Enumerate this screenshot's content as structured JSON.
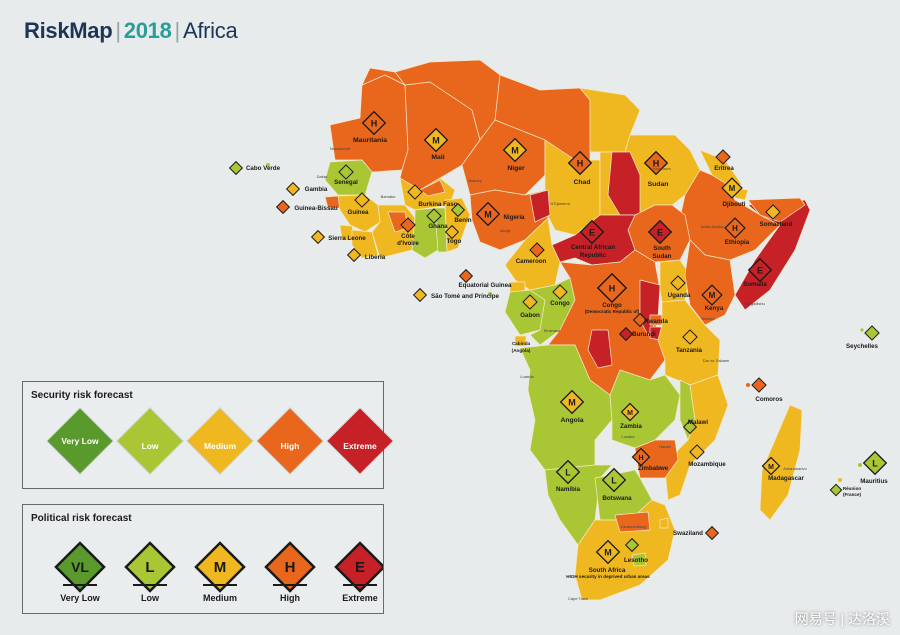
{
  "header": {
    "brand": "RiskMap",
    "year": "2018",
    "region": "Africa"
  },
  "colors": {
    "very_low": "#5a9a2d",
    "low": "#a9c634",
    "medium": "#f0b820",
    "high": "#e8671d",
    "extreme": "#c52127",
    "ocean": "#e7ebeb"
  },
  "security_legend": {
    "title": "Security risk forecast",
    "items": [
      "Very Low",
      "Low",
      "Medium",
      "High",
      "Extreme"
    ]
  },
  "political_legend": {
    "title": "Political risk forecast",
    "items": [
      {
        "letter": "VL",
        "label": "Very Low"
      },
      {
        "letter": "L",
        "label": "Low"
      },
      {
        "letter": "M",
        "label": "Medium"
      },
      {
        "letter": "H",
        "label": "High"
      },
      {
        "letter": "E",
        "label": "Extreme"
      }
    ]
  },
  "countries": {
    "mauritania": "Mauritania",
    "mali": "Mali",
    "niger": "Niger",
    "chad": "Chad",
    "sudan": "Sudan",
    "eritrea": "Eritrea",
    "djibouti": "Djibouti",
    "ethiopia": "Ethiopia",
    "somaliland": "Somaliland",
    "somalia": "Somalia",
    "south_sudan_1": "South",
    "south_sudan_2": "Sudan",
    "car_1": "Central African",
    "car_2": "Republic",
    "nigeria": "Nigeria",
    "cameroon": "Cameroon",
    "cabo_verde": "Cabo Verde",
    "senegal": "Senegal",
    "gambia": "Gambia",
    "guinea_bissau": "Guinea-Bissau",
    "guinea": "Guinea",
    "burkina_faso": "Burkina Faso",
    "sierra_leone": "Sierra Leone",
    "liberia": "Liberia",
    "cote_divoire_1": "Côte",
    "cote_divoire_2": "d'Ivoire",
    "ghana": "Ghana",
    "togo": "Togo",
    "benin": "Benin",
    "equatorial_guinea": "Equatorial Guinea",
    "sao_tome": "São Tomé and Príncipe",
    "gabon": "Gabon",
    "congo": "Congo",
    "drc_1": "Congo",
    "drc_2": "(Democratic Republic of)",
    "cabinda_1": "Cabinda",
    "cabinda_2": "(Angola)",
    "uganda": "Uganda",
    "kenya": "Kenya",
    "rwanda": "Rwanda",
    "burundi": "Burundi",
    "tanzania": "Tanzania",
    "seychelles": "Seychelles",
    "comoros": "Comoros",
    "angola": "Angola",
    "zambia": "Zambia",
    "malawi": "Malawi",
    "mozambique": "Mozambique",
    "zimbabwe": "Zimbabwe",
    "madagascar": "Madagascar",
    "mauritius": "Mauritius",
    "reunion_1": "Réunion",
    "reunion_2": "(France)",
    "namibia": "Namibia",
    "botswana": "Botswana",
    "swaziland": "Swaziland",
    "lesotho": "Lesotho",
    "south_africa": "South Africa",
    "south_africa_note": "HIGH security in deprived urban areas"
  },
  "cities": {
    "nouakchott": "Nouakchott",
    "khartoum": "Khartoum",
    "addis_ababa": "Addis Ababa",
    "mogadishu": "Mogadishu",
    "kinshasa": "Kinshasa",
    "luanda": "Luanda",
    "lusaka": "Lusaka",
    "harare": "Harare",
    "johannesburg": "Johannesburg",
    "cape_town": "Cape Town",
    "nairobi": "Nairobi",
    "dar_es_salaam": "Dar es Salaam",
    "antananarivo": "Antananarivo",
    "niamey": "Niamey",
    "ndjamena": "N'Djamena",
    "abuja": "Abuja",
    "dakar": "Dakar",
    "bamako": "Bamako"
  },
  "watermark": "网易号 | 达洛溪"
}
